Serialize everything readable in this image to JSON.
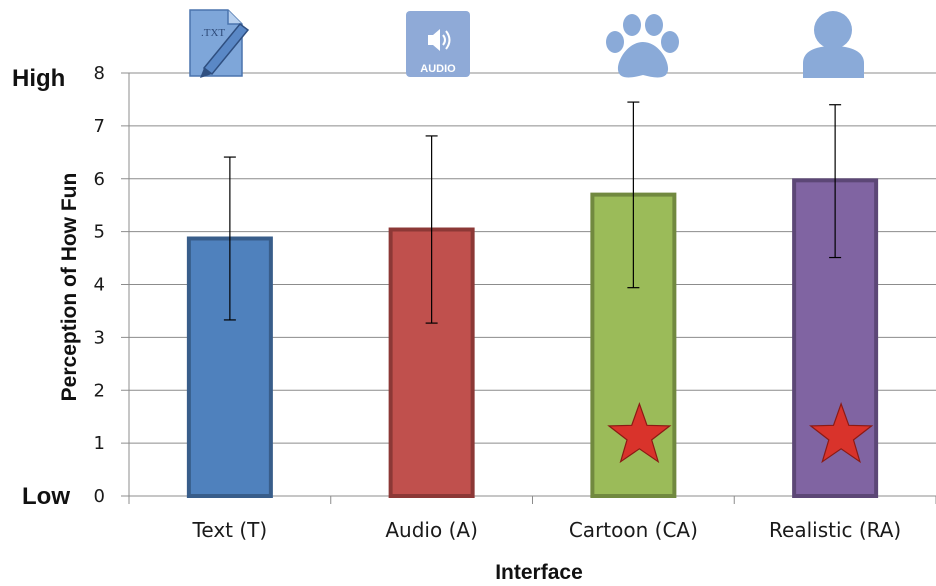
{
  "chart_data": {
    "type": "bar",
    "categories": [
      "Text (T)",
      "Audio (A)",
      "Cartoon (CA)",
      "Realistic (RA)"
    ],
    "values": [
      4.87,
      5.04,
      5.7,
      5.97
    ],
    "error_low": [
      3.33,
      3.27,
      3.94,
      4.51
    ],
    "error_high": [
      6.41,
      6.81,
      7.45,
      7.4
    ],
    "significant": [
      false,
      false,
      true,
      true
    ],
    "ylim": [
      0,
      8
    ],
    "yticks": [
      0,
      1,
      2,
      3,
      4,
      5,
      6,
      7,
      8
    ],
    "ylabel": "Perception of How Fun",
    "xlabel": "Interface",
    "y_high_label": "High",
    "y_low_label": "Low",
    "grid": true,
    "bar_fill": [
      "#4f81bd",
      "#c0504d",
      "#9bbb59",
      "#8064a2"
    ],
    "bar_border": [
      "#385d8a",
      "#8c3836",
      "#71893f",
      "#5c4776"
    ],
    "star_color": "#d9332b",
    "icons": [
      "txt-file-icon",
      "audio-speaker-icon",
      "paw-print-icon",
      "person-silhouette-icon"
    ],
    "icon_labels": {
      "txt": ".TXT",
      "audio": "AUDIO"
    }
  }
}
